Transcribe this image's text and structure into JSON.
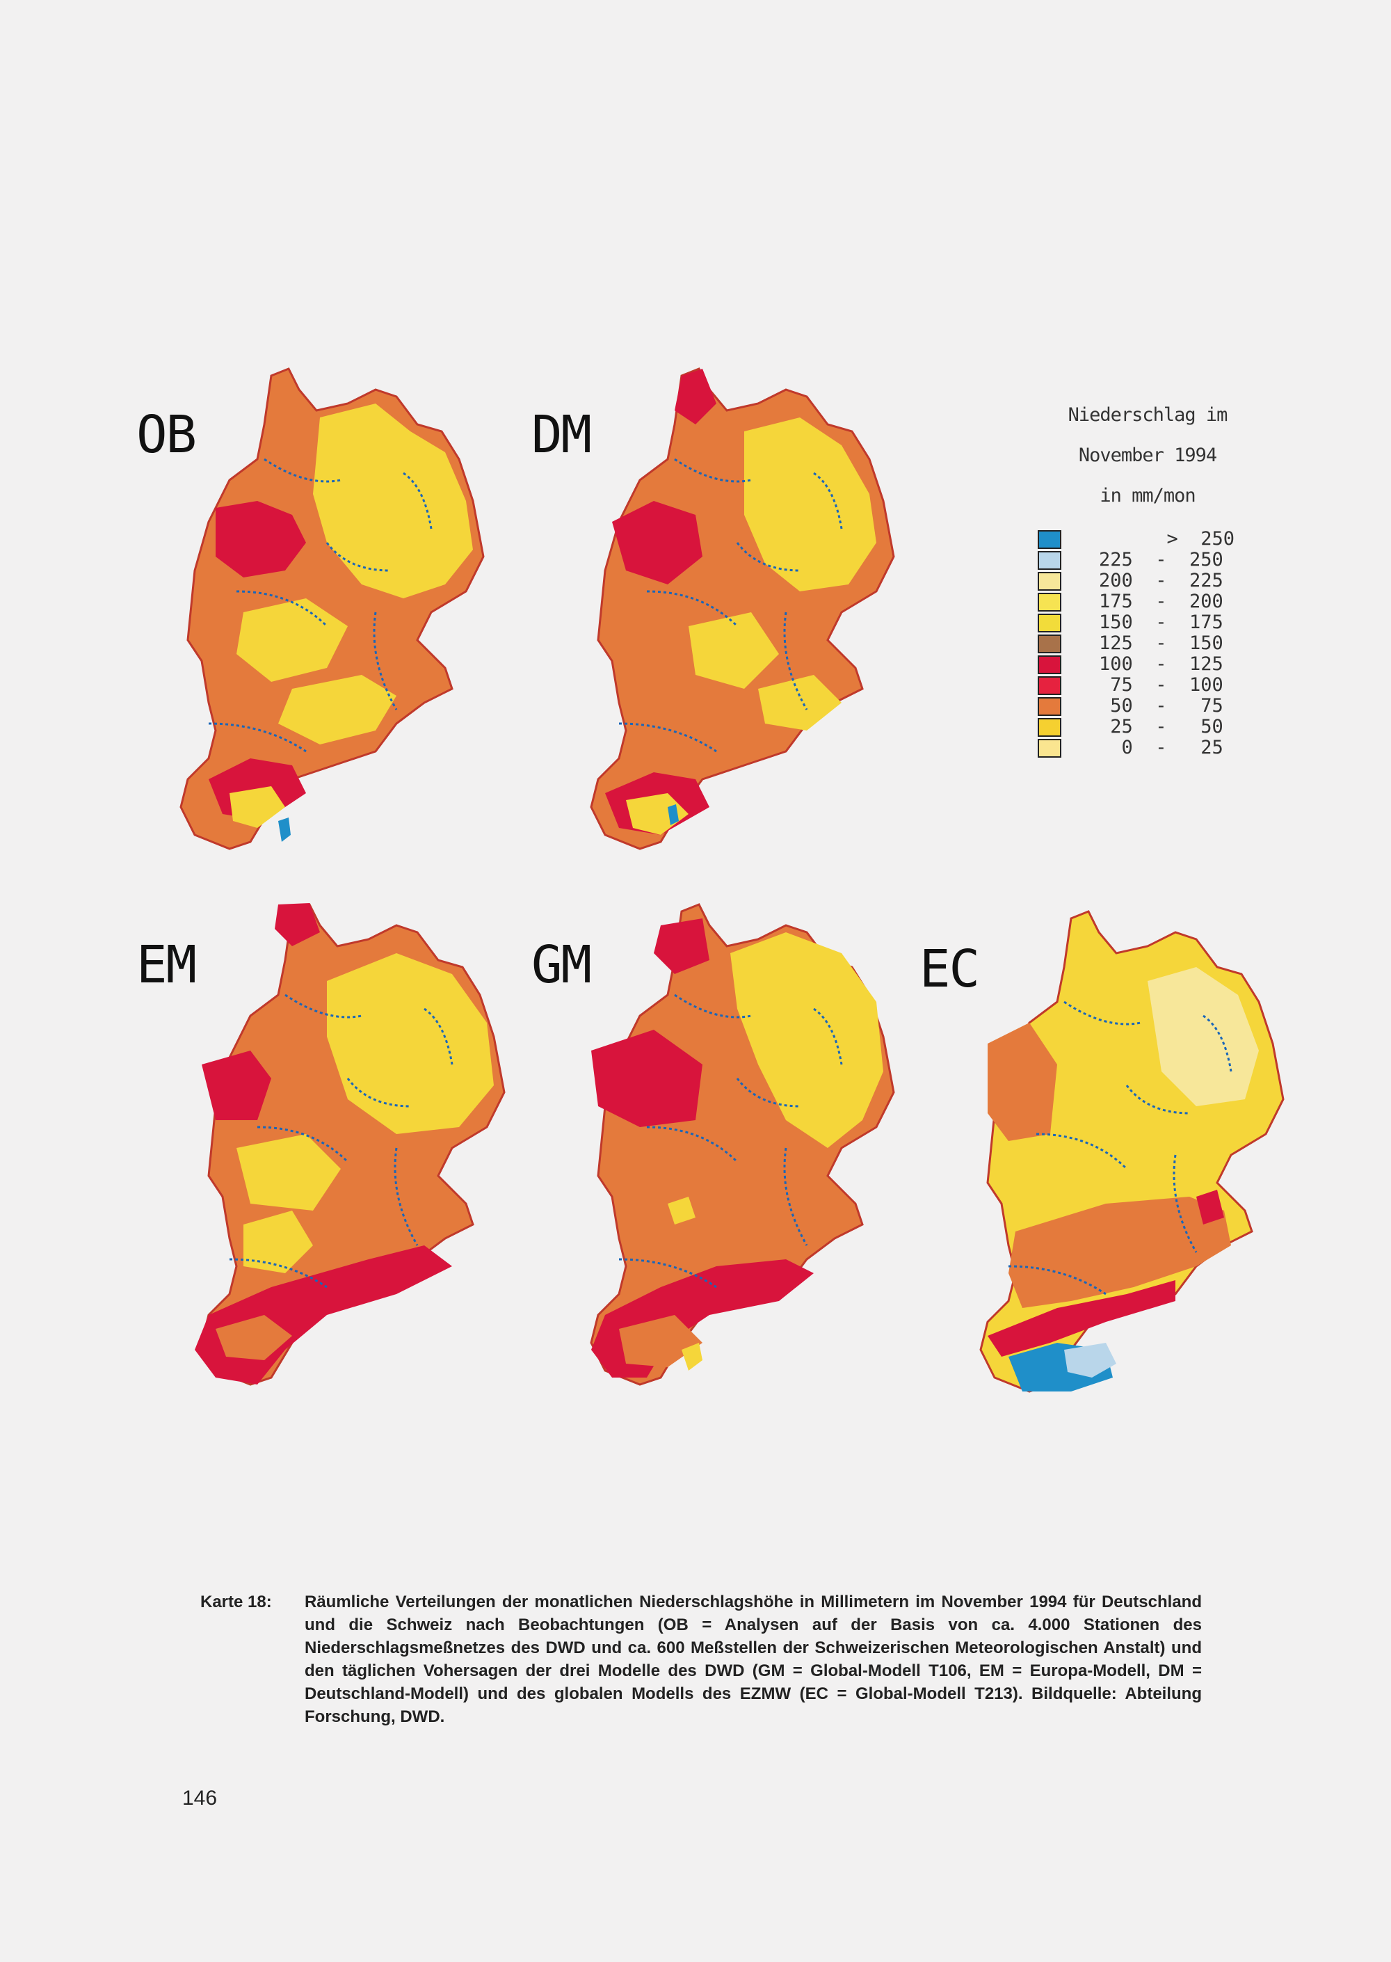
{
  "maps": {
    "ob": {
      "label": "OB"
    },
    "dm": {
      "label": "DM"
    },
    "em": {
      "label": "EM"
    },
    "gm": {
      "label": "GM"
    },
    "ec": {
      "label": "EC"
    }
  },
  "legend": {
    "title_line1": "Niederschlag im",
    "title_line2": "November 1994",
    "title_line3": "in   mm/mon",
    "entries": [
      {
        "range": "      >  250",
        "color": "#1f8fc9"
      },
      {
        "range": "225  -  250",
        "color": "#b9d6ea"
      },
      {
        "range": "200  -  225",
        "color": "#f7e79a"
      },
      {
        "range": "175  -  200",
        "color": "#f6e352"
      },
      {
        "range": "150  -  175",
        "color": "#f2dc3a"
      },
      {
        "range": "125  -  150",
        "color": "#a8724a"
      },
      {
        "range": "100  -  125",
        "color": "#d8143c"
      },
      {
        "range": " 75  -  100",
        "color": "#e6223f"
      },
      {
        "range": " 50  -   75",
        "color": "#e47a3c"
      },
      {
        "range": " 25  -   50",
        "color": "#f5d030"
      },
      {
        "range": "  0  -   25",
        "color": "#fae590"
      }
    ]
  },
  "caption": {
    "label": "Karte 18:",
    "text": "Räumliche Verteilungen der monatlichen Niederschlagshöhe in Millimetern im November 1994 für Deutschland und die Schweiz nach Beobachtungen (OB = Analysen auf der Basis von ca. 4.000 Stationen des Niederschlagsmeßnetzes des DWD und ca. 600 Meßstellen der Schweizerischen Meteorologischen Anstalt) und den täglichen Vohersagen der drei Modelle des DWD (GM = Global-Modell T106, EM = Europa-Modell, DM = Deutschland-Modell) und des globalen Modells des EZMW (EC = Global-Modell T213). Bildquelle: Abteilung Forschung, DWD."
  },
  "page_number": "146",
  "colors": {
    "orange": "#e47a3c",
    "yellow": "#f5d63a",
    "red": "#d8143c",
    "brown": "#a8724a",
    "light_yellow": "#f7e79a",
    "light_blue": "#b9d6ea",
    "blue": "#1f8fc9",
    "border": "#1a66b8"
  }
}
